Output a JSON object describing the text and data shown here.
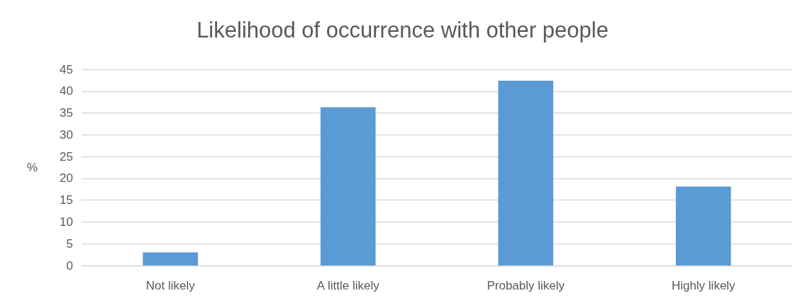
{
  "chart_data": {
    "type": "bar",
    "title": "Likelihood of occurrence with other people",
    "ylabel": "%",
    "categories": [
      "Not likely",
      "A little likely",
      "Probably likely",
      "Highly likely"
    ],
    "values": [
      3.0,
      36.3,
      42.4,
      18.1
    ],
    "color": "#5b9bd5",
    "ylim": [
      0,
      45
    ],
    "yticks": [
      0,
      5,
      10,
      15,
      20,
      25,
      30,
      35,
      40,
      45
    ],
    "grid": "y"
  }
}
